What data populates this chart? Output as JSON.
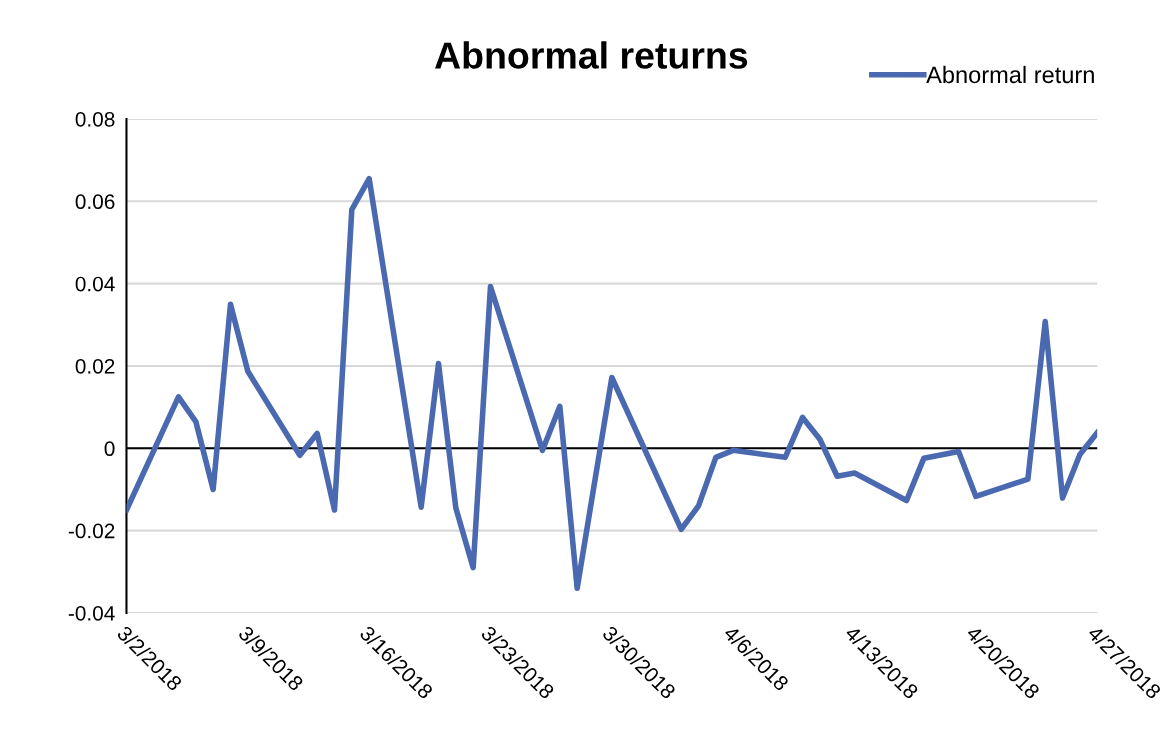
{
  "chart_data": {
    "type": "line",
    "title": "Abnormal returns",
    "x": [
      "2018-03-02",
      "2018-03-05",
      "2018-03-06",
      "2018-03-07",
      "2018-03-08",
      "2018-03-09",
      "2018-03-12",
      "2018-03-13",
      "2018-03-14",
      "2018-03-15",
      "2018-03-16",
      "2018-03-19",
      "2018-03-20",
      "2018-03-21",
      "2018-03-22",
      "2018-03-23",
      "2018-03-26",
      "2018-03-27",
      "2018-03-28",
      "2018-03-30",
      "2018-04-03",
      "2018-04-04",
      "2018-04-05",
      "2018-04-06",
      "2018-04-09",
      "2018-04-10",
      "2018-04-11",
      "2018-04-12",
      "2018-04-13",
      "2018-04-16",
      "2018-04-17",
      "2018-04-19",
      "2018-04-20",
      "2018-04-23",
      "2018-04-24",
      "2018-04-25",
      "2018-04-26",
      "2018-04-27"
    ],
    "series": [
      {
        "name": "Abnormal return",
        "color": "#4a69b0",
        "values": [
          -0.015,
          0.0125,
          0.0065,
          -0.01,
          0.035,
          0.0187,
          -0.0017,
          0.0036,
          -0.015,
          0.058,
          0.0655,
          -0.0143,
          0.0206,
          -0.0145,
          -0.029,
          0.0393,
          -0.0005,
          0.0102,
          -0.034,
          0.0172,
          -0.0197,
          -0.014,
          -0.0022,
          -0.0005,
          -0.0022,
          0.0075,
          0.0022,
          -0.0068,
          -0.006,
          -0.0127,
          -0.0024,
          -0.0008,
          -0.0117,
          -0.0075,
          0.0308,
          -0.0121,
          -0.0015,
          0.0038
        ]
      }
    ],
    "xlim": [
      "2018-03-02",
      "2018-04-27"
    ],
    "xticks": [
      {
        "value": "2018-03-02",
        "label": "3/2/2018"
      },
      {
        "value": "2018-03-09",
        "label": "3/9/2018"
      },
      {
        "value": "2018-03-16",
        "label": "3/16/2018"
      },
      {
        "value": "2018-03-23",
        "label": "3/23/2018"
      },
      {
        "value": "2018-03-30",
        "label": "3/30/2018"
      },
      {
        "value": "2018-04-06",
        "label": "4/6/2018"
      },
      {
        "value": "2018-04-13",
        "label": "4/13/2018"
      },
      {
        "value": "2018-04-20",
        "label": "4/20/2018"
      },
      {
        "value": "2018-04-27",
        "label": "4/27/2018"
      }
    ],
    "ylim": [
      -0.04,
      0.08
    ],
    "yticks": [
      {
        "value": -0.04,
        "label": "-0.04"
      },
      {
        "value": -0.02,
        "label": "-0.02"
      },
      {
        "value": 0,
        "label": "0"
      },
      {
        "value": 0.02,
        "label": "0.02"
      },
      {
        "value": 0.04,
        "label": "0.04"
      },
      {
        "value": 0.06,
        "label": "0.06"
      },
      {
        "value": 0.08,
        "label": "0.08"
      }
    ],
    "ref_lines": [
      {
        "axis": "y",
        "value": 0,
        "color": "#000000"
      }
    ],
    "grid": "y",
    "legend": "top right",
    "line_style": "solid",
    "marker": "none"
  }
}
